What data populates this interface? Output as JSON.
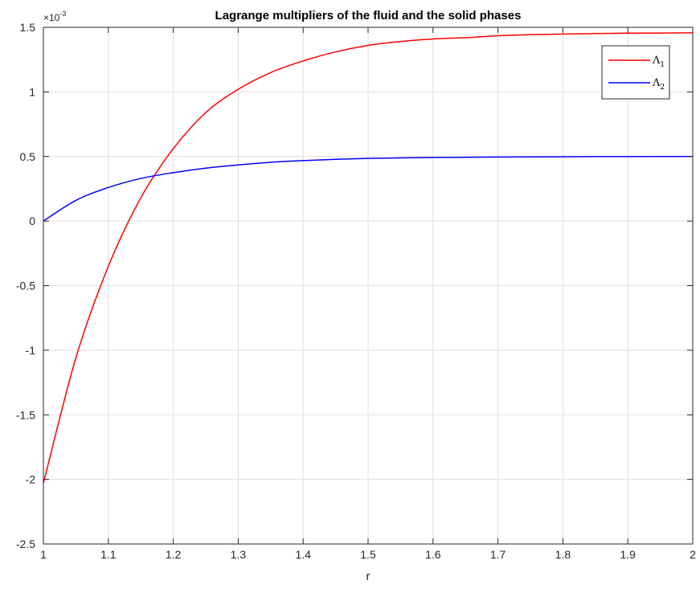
{
  "chart_data": {
    "type": "line",
    "title": "Lagrange multipliers of the fluid and the solid phases",
    "xlabel": "r",
    "ylabel": "",
    "y_exponent_base": "×10",
    "y_exponent_power": "-3",
    "xlim": [
      1,
      2
    ],
    "ylim": [
      -2.5,
      1.5
    ],
    "xticks": [
      1,
      1.1,
      1.2,
      1.3,
      1.4,
      1.5,
      1.6,
      1.7,
      1.8,
      1.9,
      2
    ],
    "xtick_labels": [
      "1",
      "1.1",
      "1.2",
      "1.3",
      "1.4",
      "1.5",
      "1.6",
      "1.7",
      "1.8",
      "1.9",
      "2"
    ],
    "yticks": [
      -2.5,
      -2,
      -1.5,
      -1,
      -0.5,
      0,
      0.5,
      1,
      1.5
    ],
    "ytick_labels": [
      "-2.5",
      "-2",
      "-1.5",
      "-1",
      "-0.5",
      "0",
      "0.5",
      "1",
      "1.5"
    ],
    "grid": true,
    "legend_position": "top-right",
    "x": [
      1.0,
      1.05,
      1.1,
      1.15,
      1.2,
      1.25,
      1.3,
      1.35,
      1.4,
      1.45,
      1.5,
      1.55,
      1.6,
      1.65,
      1.7,
      1.75,
      1.8,
      1.85,
      1.9,
      1.95,
      2.0
    ],
    "series": [
      {
        "name": "Λ",
        "name_subscript": "1",
        "color": "#ff0000",
        "values": [
          -2.03,
          -1.06,
          -0.35,
          0.18,
          0.56,
          0.84,
          1.02,
          1.15,
          1.24,
          1.31,
          1.36,
          1.39,
          1.41,
          1.42,
          1.435,
          1.443,
          1.448,
          1.452,
          1.455,
          1.456,
          1.457
        ]
      },
      {
        "name": "Λ",
        "name_subscript": "2",
        "color": "#0000ff",
        "values": [
          0.0,
          0.16,
          0.26,
          0.33,
          0.375,
          0.41,
          0.435,
          0.455,
          0.468,
          0.478,
          0.485,
          0.489,
          0.492,
          0.494,
          0.496,
          0.497,
          0.498,
          0.499,
          0.4995,
          0.4998,
          0.5
        ]
      }
    ]
  }
}
